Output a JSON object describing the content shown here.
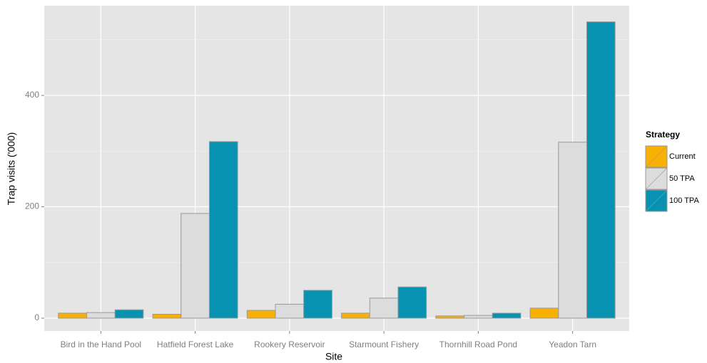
{
  "chart_data": {
    "type": "bar",
    "x_label": "Site",
    "y_label": "Trap visits ('000)",
    "categories": [
      "Bird in the Hand Pool",
      "Hatfield Forest Lake",
      "Rookery Reservoir",
      "Starmount Fishery",
      "Thornhill Road Pond",
      "Yeadon Tarn"
    ],
    "legend_title": "Strategy",
    "series": [
      {
        "name": "Current",
        "color": "#f8b005",
        "values": [
          9,
          7,
          14,
          9,
          4,
          18
        ]
      },
      {
        "name": "50 TPA",
        "color": "#dcdcdc",
        "values": [
          10,
          188,
          25,
          36,
          5,
          316
        ]
      },
      {
        "name": "100 TPA",
        "color": "#0792b1",
        "values": [
          15,
          317,
          50,
          56,
          9,
          532
        ]
      }
    ],
    "ylim": [
      -23,
      561
    ],
    "yticks": [
      0,
      200,
      400
    ],
    "minor_yticks": [
      100,
      300,
      500
    ],
    "grid": true,
    "legend": "right"
  }
}
